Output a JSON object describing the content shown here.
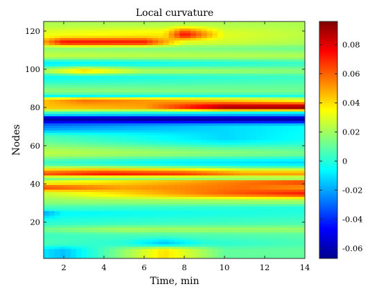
{
  "chart_data": {
    "type": "heatmap",
    "title": "Local curvature",
    "xlabel": "Time, min",
    "ylabel": "Nodes",
    "xlim": [
      1,
      14
    ],
    "ylim": [
      1,
      125
    ],
    "x_ticks": [
      2,
      4,
      6,
      8,
      10,
      12,
      14
    ],
    "y_ticks": [
      20,
      40,
      60,
      80,
      100,
      120
    ],
    "colormap": "jet",
    "clim": [
      -0.067,
      0.096
    ],
    "colorbar_ticks": [
      -0.06,
      -0.04,
      -0.02,
      0,
      0.02,
      0.04,
      0.06,
      0.08
    ],
    "colorbar_tick_labels": [
      "-0.06",
      "-0.04",
      "-0.02",
      "0",
      "0.02",
      "0.04",
      "0.06",
      "0.08"
    ],
    "baseline": 0.007,
    "bands": [
      {
        "node_start": 124,
        "node_end": 124,
        "time": [
          1,
          14
        ],
        "curvature": [
          0.022,
          0.022
        ]
      },
      {
        "node_start": 107,
        "node_end": 107,
        "time": [
          1,
          14
        ],
        "curvature": [
          0.025,
          0.022
        ]
      },
      {
        "node_start": 103,
        "node_end": 103,
        "time": [
          1,
          14
        ],
        "curvature": [
          -0.008,
          0.003
        ]
      },
      {
        "node_start": 99,
        "node_end": 99,
        "time": [
          1,
          3,
          6,
          14
        ],
        "curvature": [
          0.022,
          0.042,
          0.022,
          0.016
        ]
      },
      {
        "node_start": 96,
        "node_end": 96,
        "time": [
          1,
          14
        ],
        "curvature": [
          -0.004,
          0.004
        ]
      },
      {
        "node_start": 88,
        "node_end": 88,
        "time": [
          1,
          14
        ],
        "curvature": [
          0.016,
          0.012
        ]
      },
      {
        "node_start": 86,
        "node_end": 86,
        "time": [
          1,
          14
        ],
        "curvature": [
          -0.006,
          -0.002
        ]
      },
      {
        "node_start": 64,
        "node_end": 64,
        "time": [
          1,
          10,
          14
        ],
        "curvature": [
          0.008,
          -0.012,
          -0.004
        ]
      },
      {
        "node_start": 56,
        "node_end": 56,
        "time": [
          1,
          14
        ],
        "curvature": [
          0.024,
          0.012
        ]
      },
      {
        "node_start": 51,
        "node_end": 51,
        "time": [
          1,
          8,
          14
        ],
        "curvature": [
          0.004,
          -0.008,
          -0.012
        ]
      },
      {
        "node_start": 43,
        "node_end": 43,
        "time": [
          1,
          14
        ],
        "curvature": [
          0.012,
          0.014
        ]
      },
      {
        "node_start": 31,
        "node_end": 31,
        "time": [
          1,
          14
        ],
        "curvature": [
          0.018,
          0.02
        ]
      },
      {
        "node_start": 27,
        "node_end": 27,
        "time": [
          1,
          14
        ],
        "curvature": [
          0.004,
          -0.002
        ]
      },
      {
        "node_start": 25,
        "node_end": 25,
        "time": [
          1,
          2,
          14
        ],
        "curvature": [
          -0.02,
          -0.006,
          0.0
        ]
      },
      {
        "node_start": 20,
        "node_end": 20,
        "time": [
          1,
          14
        ],
        "curvature": [
          0.0,
          0.005
        ]
      },
      {
        "node_start": 16,
        "node_end": 16,
        "time": [
          1,
          5,
          14
        ],
        "curvature": [
          0.012,
          0.02,
          0.018
        ]
      },
      {
        "node_start": 13,
        "node_end": 13,
        "time": [
          1,
          14
        ],
        "curvature": [
          0.004,
          0.008
        ]
      },
      {
        "node_start": 9,
        "node_end": 9,
        "time": [
          1,
          5,
          7,
          9,
          14
        ],
        "curvature": [
          0.006,
          0.0,
          -0.015,
          0.0,
          0.006
        ]
      },
      {
        "node_start": 5,
        "node_end": 5,
        "time": [
          1,
          2,
          7,
          10,
          14
        ],
        "curvature": [
          -0.01,
          -0.016,
          0.04,
          0.01,
          0.01
        ]
      },
      {
        "node_start": 118,
        "node_end": 118,
        "time": [
          1,
          7,
          8,
          10,
          14
        ],
        "curvature": [
          0.032,
          0.038,
          0.075,
          0.03,
          0.024
        ]
      },
      {
        "node_start": 114,
        "node_end": 114,
        "time": [
          1,
          2,
          6,
          8,
          14
        ],
        "curvature": [
          0.05,
          0.074,
          0.072,
          0.03,
          0.022
        ]
      },
      {
        "node_start": 111,
        "node_end": 111,
        "time": [
          1,
          14
        ],
        "curvature": [
          0.018,
          0.012
        ]
      },
      {
        "node_start": 84,
        "node_end": 84,
        "time": [
          1,
          3,
          7,
          14
        ],
        "curvature": [
          0.045,
          0.058,
          0.05,
          0.032
        ]
      },
      {
        "node_start": 80,
        "node_end": 80,
        "time": [
          1,
          6,
          10,
          14
        ],
        "curvature": [
          0.044,
          0.05,
          0.09,
          0.092
        ]
      },
      {
        "node_start": 77,
        "node_end": 77,
        "time": [
          1,
          14
        ],
        "curvature": [
          0.004,
          -0.008
        ]
      },
      {
        "node_start": 74,
        "node_end": 74,
        "time": [
          1,
          6,
          14
        ],
        "curvature": [
          -0.062,
          -0.064,
          -0.062
        ]
      },
      {
        "node_start": 70,
        "node_end": 70,
        "time": [
          1,
          14
        ],
        "curvature": [
          -0.026,
          -0.006
        ]
      },
      {
        "node_start": 45,
        "node_end": 45,
        "time": [
          1,
          4,
          8,
          11,
          14
        ],
        "curvature": [
          0.062,
          0.072,
          0.066,
          0.05,
          0.05
        ]
      },
      {
        "node_start": 41,
        "node_end": 41,
        "time": [
          1,
          14
        ],
        "curvature": [
          0.03,
          0.066
        ]
      },
      {
        "node_start": 38,
        "node_end": 38,
        "time": [
          1,
          5,
          11,
          14
        ],
        "curvature": [
          0.064,
          0.05,
          0.058,
          0.052
        ]
      },
      {
        "node_start": 35,
        "node_end": 35,
        "time": [
          1,
          10,
          14
        ],
        "curvature": [
          0.026,
          0.06,
          0.072
        ]
      }
    ]
  }
}
